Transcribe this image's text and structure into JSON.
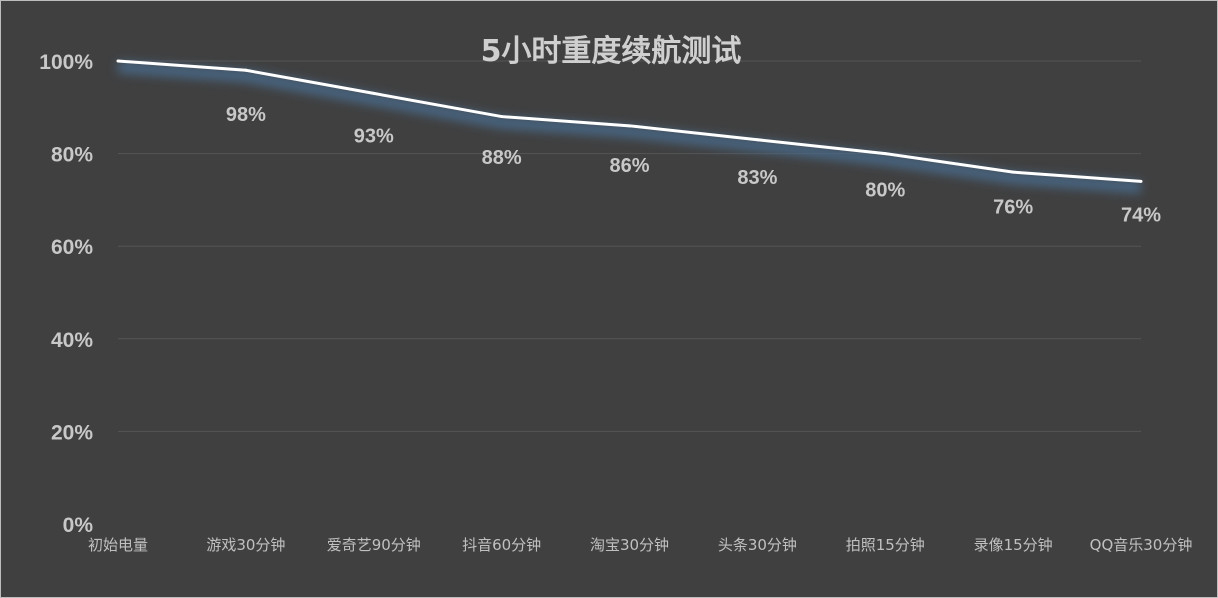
{
  "chart_data": {
    "type": "line",
    "title": "5小时重度续航测试",
    "xlabel": "",
    "ylabel": "",
    "categories": [
      "初始电量",
      "游戏30分钟",
      "爱奇艺90分钟",
      "抖音60分钟",
      "淘宝30分钟",
      "头条30分钟",
      "拍照15分钟",
      "录像15分钟",
      "QQ音乐30分钟"
    ],
    "values": [
      100,
      98,
      93,
      88,
      86,
      83,
      80,
      76,
      74
    ],
    "data_labels": [
      "",
      "98%",
      "93%",
      "88%",
      "86%",
      "83%",
      "80%",
      "76%",
      "74%"
    ],
    "ylim": [
      0,
      100
    ],
    "yticks": [
      0,
      20,
      40,
      60,
      80,
      100
    ],
    "ytick_labels": [
      "0%",
      "20%",
      "40%",
      "60%",
      "80%",
      "100%"
    ],
    "grid": true,
    "legend": "none",
    "colors": {
      "background": "#404040",
      "line": "#ffffff",
      "glow": "#4a6a8a",
      "grid": "#555555"
    }
  }
}
